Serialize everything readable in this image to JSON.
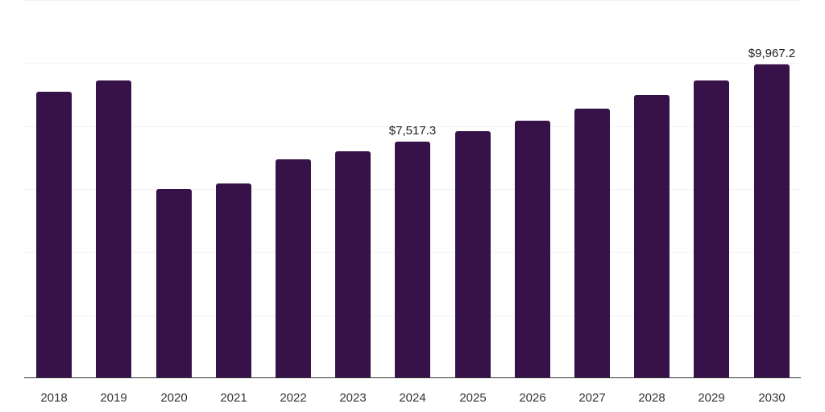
{
  "chart_data": {
    "type": "bar",
    "title": "",
    "xlabel": "",
    "ylabel": "",
    "categories": [
      "2018",
      "2019",
      "2020",
      "2021",
      "2022",
      "2023",
      "2024",
      "2025",
      "2026",
      "2027",
      "2028",
      "2029",
      "2030"
    ],
    "values": [
      9100,
      9457,
      6007,
      6186,
      6952,
      7208,
      7517.3,
      7847,
      8179,
      8563,
      8997,
      9457,
      9967.2
    ],
    "data_labels": [
      {
        "category": "2024",
        "text": "$7,517.3"
      },
      {
        "category": "2030",
        "text": "$9,967.2"
      }
    ],
    "ylim": [
      0,
      12000
    ],
    "gridlines": [
      2000,
      4000,
      6000,
      8000,
      10000,
      12000
    ],
    "grid": true,
    "y_axis_labels_visible": false,
    "legend": null,
    "bar_color": "#371249"
  }
}
